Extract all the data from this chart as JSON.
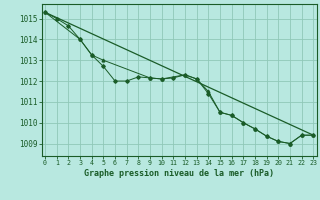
{
  "title": "Graphe pression niveau de la mer (hPa)",
  "bg_color": "#b8e8e0",
  "grid_color": "#90c8b8",
  "line_color": "#1a5c28",
  "text_color": "#1a5c28",
  "xlim": [
    -0.3,
    23.3
  ],
  "ylim": [
    1008.4,
    1015.7
  ],
  "yticks": [
    1009,
    1010,
    1011,
    1012,
    1013,
    1014,
    1015
  ],
  "xticks": [
    0,
    1,
    2,
    3,
    4,
    5,
    6,
    7,
    8,
    9,
    10,
    11,
    12,
    13,
    14,
    15,
    16,
    17,
    18,
    19,
    20,
    21,
    22,
    23
  ],
  "series_jagged_x": [
    0,
    1,
    2,
    3,
    4,
    5,
    6,
    7,
    8,
    9,
    10,
    11,
    12,
    13,
    14,
    15,
    16,
    17,
    18,
    19,
    20,
    21,
    22,
    23
  ],
  "series_jagged_y": [
    1015.3,
    1015.0,
    1014.65,
    1014.0,
    1013.25,
    1012.7,
    1012.0,
    1012.0,
    1012.2,
    1012.15,
    1012.1,
    1012.15,
    1012.3,
    1012.1,
    1011.4,
    1010.5,
    1010.35,
    1010.0,
    1009.7,
    1009.35,
    1009.1,
    1009.0,
    1009.4,
    1009.4
  ],
  "series_smooth_x": [
    0,
    3,
    4,
    5,
    9,
    10,
    12,
    13,
    14,
    15,
    16,
    17,
    18,
    19,
    20,
    21,
    22,
    23
  ],
  "series_smooth_y": [
    1015.3,
    1014.0,
    1013.25,
    1013.0,
    1012.15,
    1012.1,
    1012.3,
    1012.1,
    1011.5,
    1010.5,
    1010.35,
    1010.0,
    1009.7,
    1009.35,
    1009.1,
    1009.0,
    1009.4,
    1009.4
  ],
  "trend_x": [
    0,
    23
  ],
  "trend_y": [
    1015.3,
    1009.4
  ]
}
